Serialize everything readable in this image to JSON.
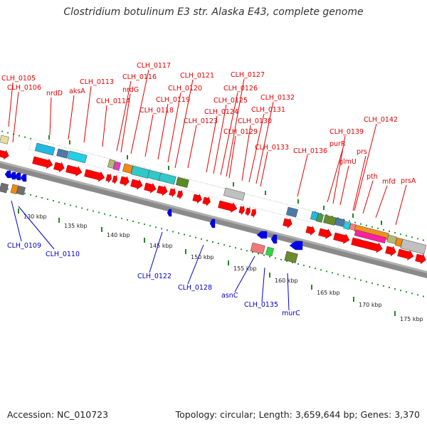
{
  "title": "Clostridium botulinum E3 str. Alaska E43, complete genome",
  "accession_text": "Accession: NC_010723",
  "summary_text": "Topology: circular; Length: 3,659,644 bp; Genes: 3,370",
  "colors": {
    "forward_label": "#e00000",
    "reverse_label": "#0000cc",
    "forward_arrow": "#ff0000",
    "reverse_arrow": "#0000ee",
    "backbone": "#808080",
    "dots": "#2a9a2a"
  },
  "scale_ticks": [
    "130 kbp",
    "135 kbp",
    "140 kbp",
    "145 kbp",
    "150 kbp",
    "155 kbp",
    "160 kbp",
    "165 kbp",
    "170 kbp",
    "175 kbp"
  ],
  "forward_labels": [
    "CLH_0105",
    "CLH_0106",
    "nrdD",
    "aksA",
    "CLH_0113",
    "CLH_0114",
    "CLH_0116",
    "nrdG",
    "CLH_0117",
    "CLH_0118",
    "CLH_0119",
    "CLH_0120",
    "CLH_0121",
    "CLH_0123",
    "CLH_0124",
    "CLH_0125",
    "CLH_0126",
    "CLH_0127",
    "CLH_0129",
    "CLH_0130",
    "CLH_0131",
    "CLH_0132",
    "CLH_0133",
    "CLH_0136",
    "purR",
    "glmU",
    "CLH_0139",
    "prs",
    "CLH_0142",
    "pth",
    "mfd",
    "prsA"
  ],
  "reverse_labels": [
    "CLH_0109",
    "CLH_0110",
    "CLH_0122",
    "CLH_0128",
    "asnC",
    "CLH_0135",
    "murC"
  ]
}
